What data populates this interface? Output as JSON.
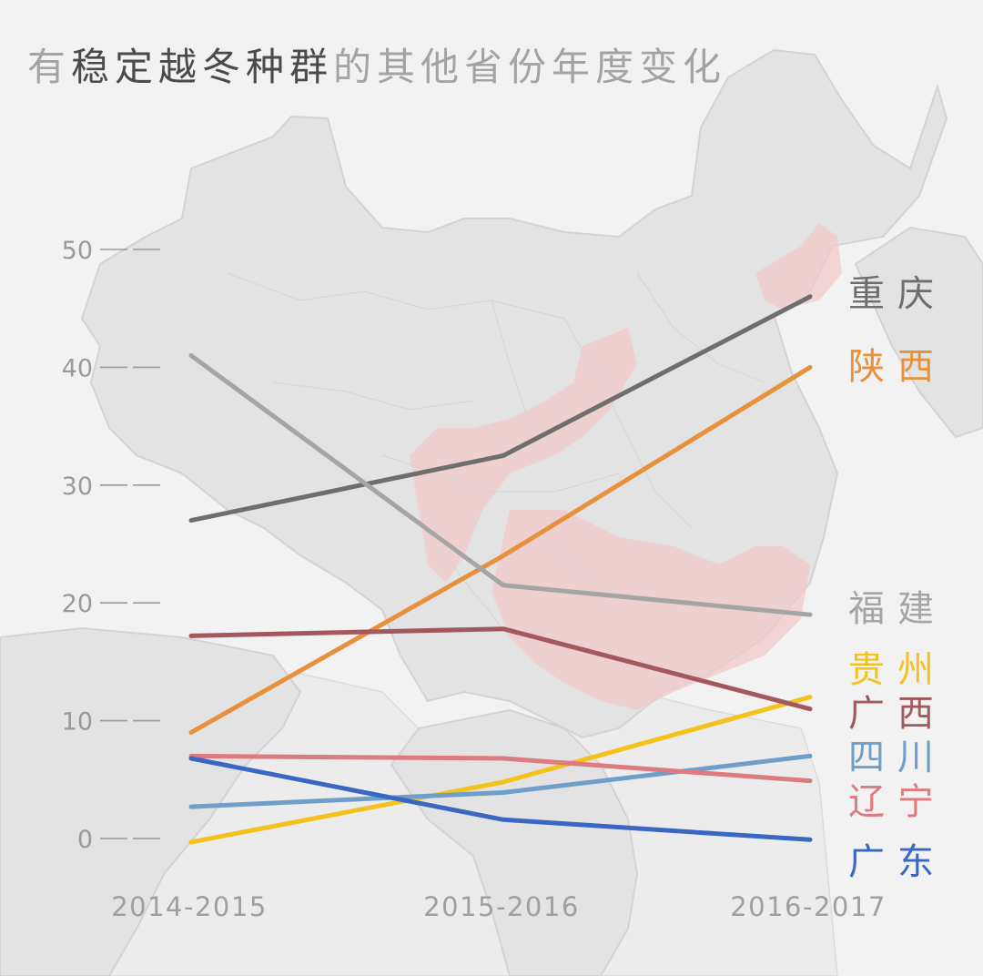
{
  "title": {
    "part1": "有",
    "part2": "稳定越冬种群",
    "part3": "的其他省份年度变化"
  },
  "colors": {
    "background": "#f2f2f2",
    "title_muted": "#a3a3a3",
    "title_strong": "#4a4a4a",
    "axis_text": "#9a9a9a"
  },
  "chart_data": {
    "type": "line",
    "title": "有稳定越冬种群的其他省份年度变化",
    "categories": [
      "2014-2015",
      "2015-2016",
      "2016-2017"
    ],
    "ylim": [
      0,
      50
    ],
    "yticks": [
      0,
      10,
      20,
      30,
      40,
      50
    ],
    "grid": false,
    "legend": "right, inline at line ends",
    "series": [
      {
        "name": "重庆",
        "color": "#6e6e6e",
        "values": [
          27,
          32.5,
          46
        ]
      },
      {
        "name": "陕西",
        "color": "#e8913c",
        "values": [
          9,
          24,
          40
        ]
      },
      {
        "name": "福建",
        "color": "#a5a5a5",
        "values": [
          41,
          21.5,
          19
        ]
      },
      {
        "name": "贵州",
        "color": "#f4c21b",
        "values": [
          -0.3,
          4.8,
          12
        ]
      },
      {
        "name": "广西",
        "color": "#a3585e",
        "values": [
          17.2,
          17.8,
          11
        ]
      },
      {
        "name": "四川",
        "color": "#6f9fc9",
        "values": [
          2.7,
          3.9,
          7
        ]
      },
      {
        "name": "辽宁",
        "color": "#dc7b80",
        "values": [
          7,
          6.8,
          4.9
        ]
      },
      {
        "name": "广东",
        "color": "#3a66c4",
        "values": [
          6.8,
          1.6,
          -0.1
        ]
      }
    ]
  }
}
